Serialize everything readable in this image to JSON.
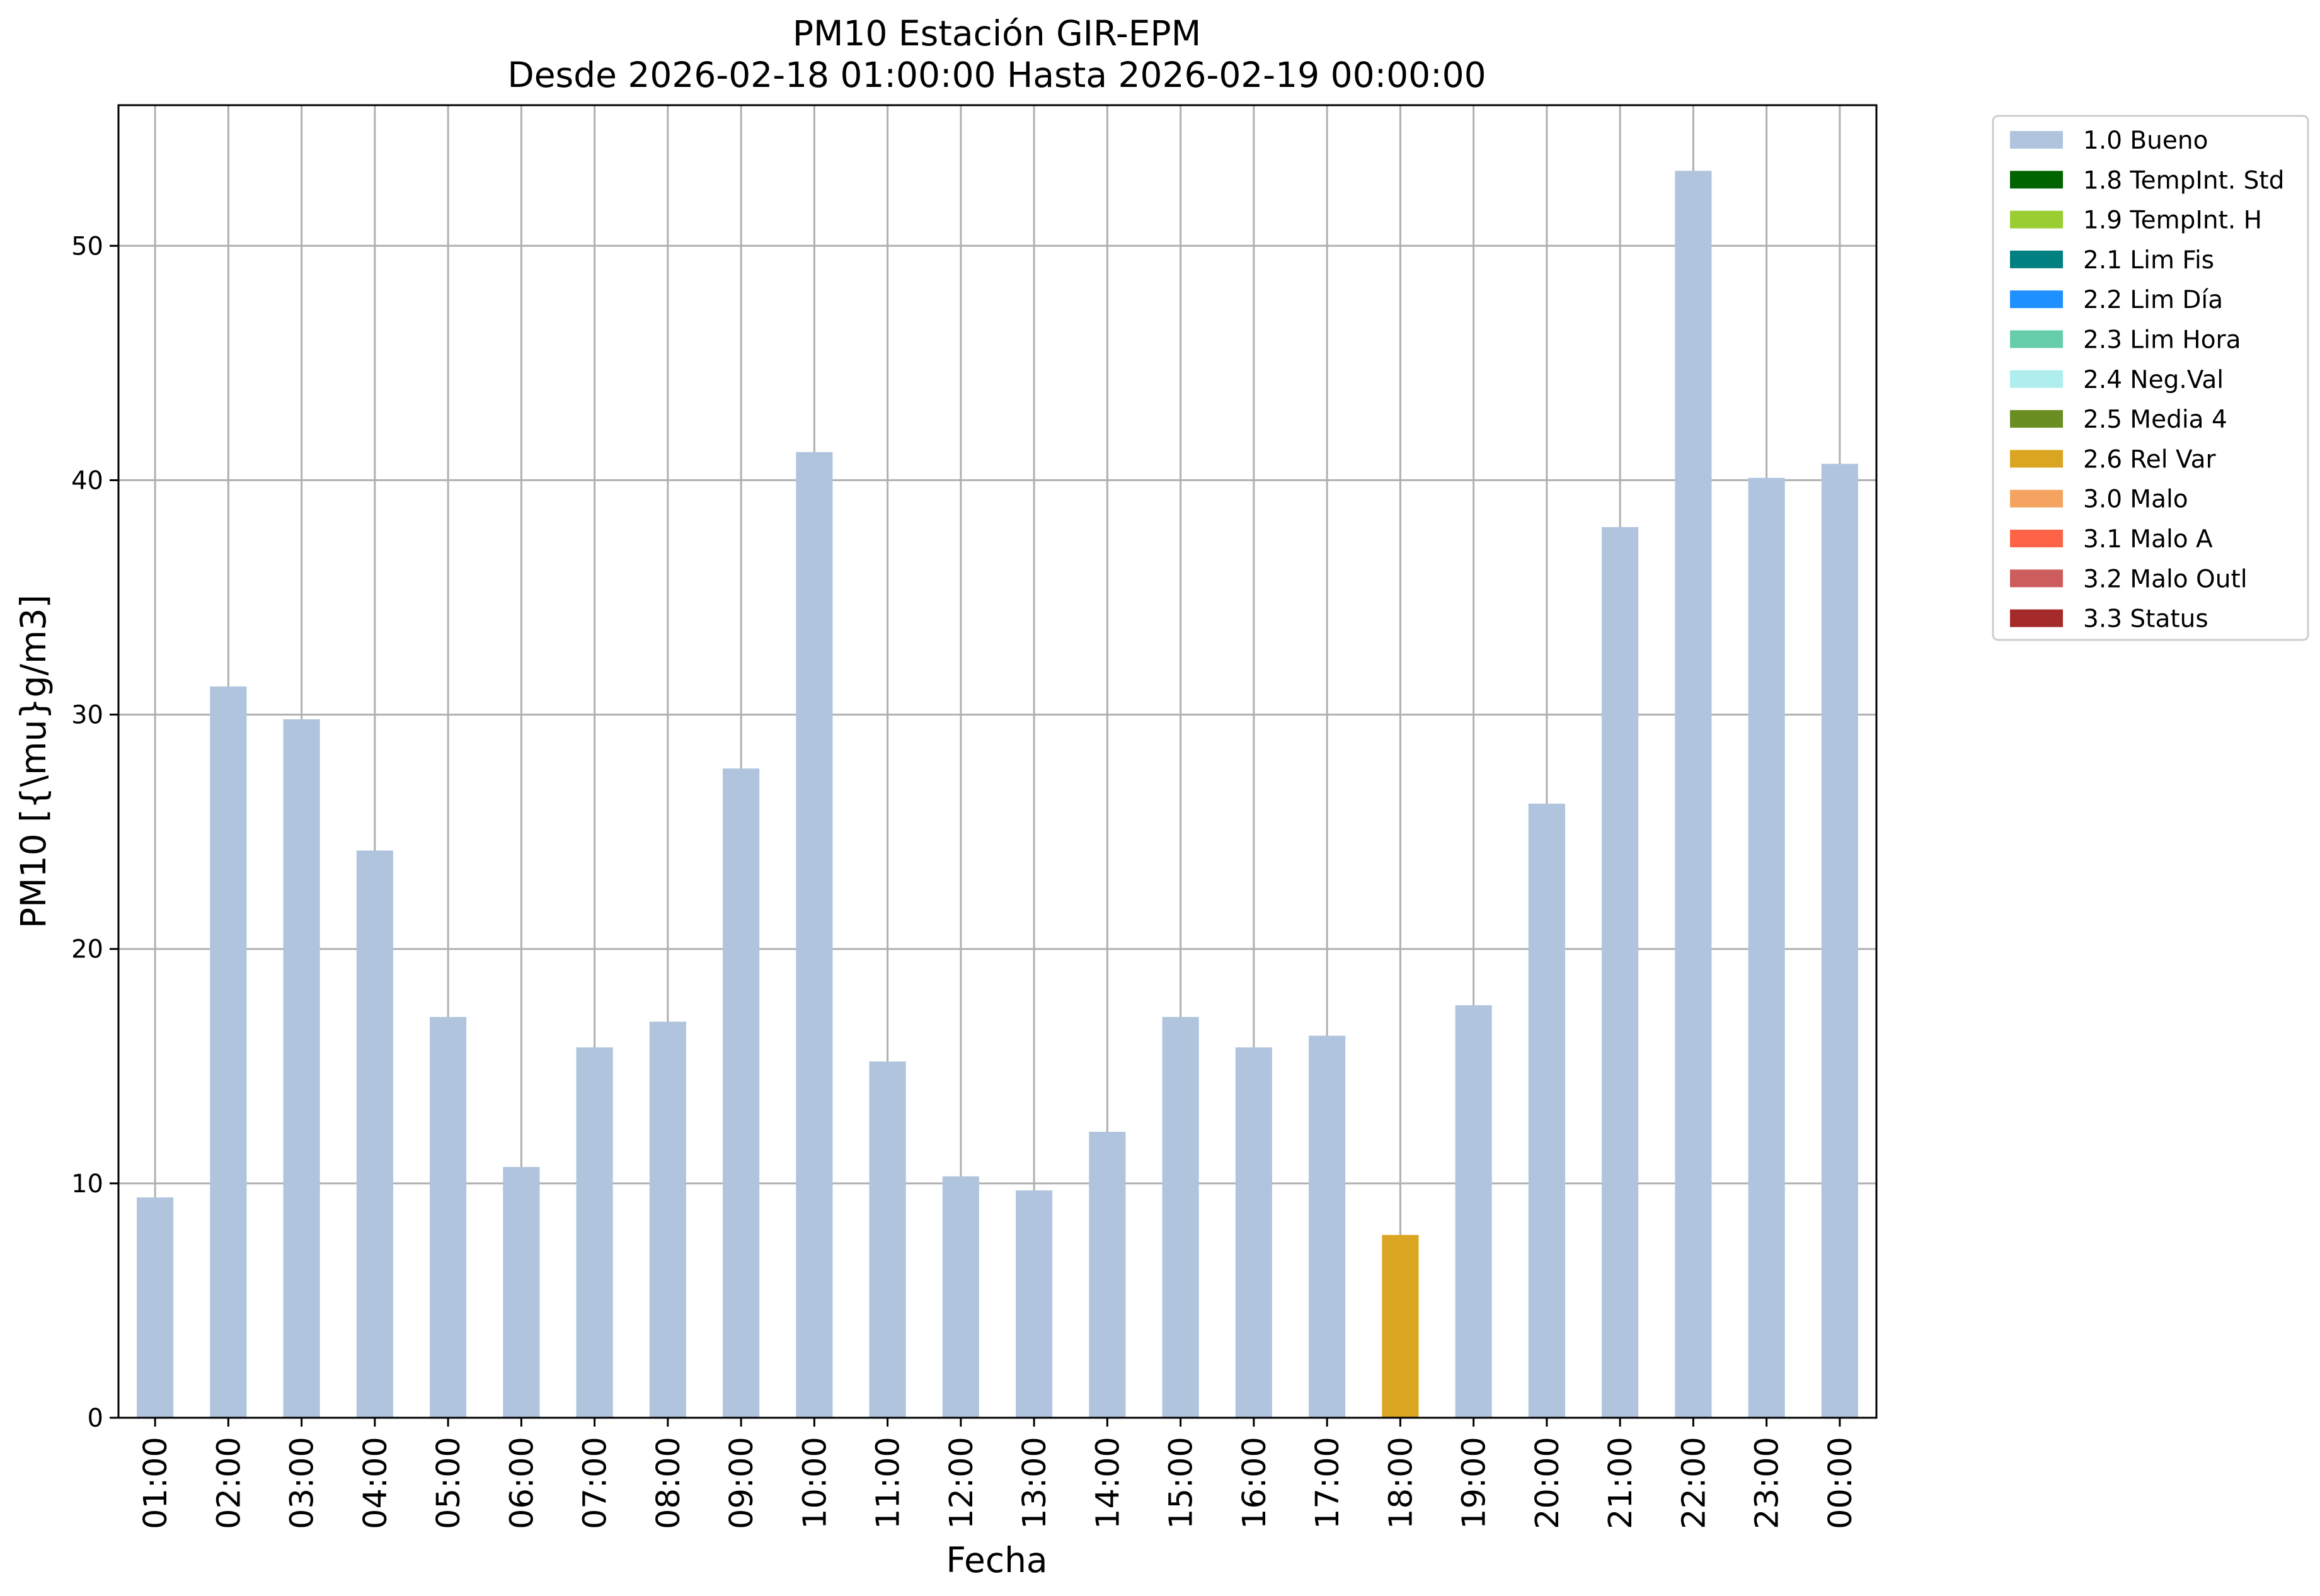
{
  "chart_data": {
    "type": "bar",
    "title": "PM10 Estación GIR-EPM",
    "subtitle": "Desde 2026-02-18 01:00:00 Hasta 2026-02-19 00:00:00",
    "xlabel": "Fecha",
    "ylabel": "PM10 [{\\mu}g/m3]",
    "ylim": [
      0,
      56
    ],
    "yticks": [
      0,
      10,
      20,
      30,
      40,
      50
    ],
    "grid": true,
    "legend_position": "outside-top-right",
    "categories": [
      "01:00",
      "02:00",
      "03:00",
      "04:00",
      "05:00",
      "06:00",
      "07:00",
      "08:00",
      "09:00",
      "10:00",
      "11:00",
      "12:00",
      "13:00",
      "14:00",
      "15:00",
      "16:00",
      "17:00",
      "18:00",
      "19:00",
      "20:00",
      "21:00",
      "22:00",
      "23:00",
      "00:00"
    ],
    "values": [
      9.4,
      31.2,
      29.8,
      24.2,
      17.1,
      10.7,
      15.8,
      16.9,
      27.7,
      41.2,
      15.2,
      10.3,
      9.7,
      12.2,
      17.1,
      15.8,
      16.3,
      7.8,
      17.6,
      26.2,
      38.0,
      53.2,
      40.1,
      40.7
    ],
    "flags": [
      "1.0 Bueno",
      "1.0 Bueno",
      "1.0 Bueno",
      "1.0 Bueno",
      "1.0 Bueno",
      "1.0 Bueno",
      "1.0 Bueno",
      "1.0 Bueno",
      "1.0 Bueno",
      "1.0 Bueno",
      "1.0 Bueno",
      "1.0 Bueno",
      "1.0 Bueno",
      "1.0 Bueno",
      "1.0 Bueno",
      "1.0 Bueno",
      "1.0 Bueno",
      "2.6 Rel Var",
      "1.0 Bueno",
      "1.0 Bueno",
      "1.0 Bueno",
      "1.0 Bueno",
      "1.0 Bueno",
      "1.0 Bueno"
    ],
    "legend": [
      {
        "label": "1.0 Bueno",
        "color": "#b0c4de"
      },
      {
        "label": "1.8 TempInt. Std",
        "color": "#006400"
      },
      {
        "label": "1.9 TempInt. H",
        "color": "#9acd32"
      },
      {
        "label": "2.1 Lim Fis",
        "color": "#008080"
      },
      {
        "label": "2.2 Lim Día",
        "color": "#1e90ff"
      },
      {
        "label": "2.3 Lim Hora",
        "color": "#66cdaa"
      },
      {
        "label": "2.4 Neg.Val",
        "color": "#afeeee"
      },
      {
        "label": "2.5 Media 4",
        "color": "#6b8e23"
      },
      {
        "label": "2.6 Rel Var",
        "color": "#daa520"
      },
      {
        "label": "3.0 Malo",
        "color": "#f4a460"
      },
      {
        "label": "3.1 Malo A",
        "color": "#ff6347"
      },
      {
        "label": "3.2 Malo Outl",
        "color": "#cd5c5c"
      },
      {
        "label": "3.3 Status",
        "color": "#a52a2a"
      }
    ]
  }
}
